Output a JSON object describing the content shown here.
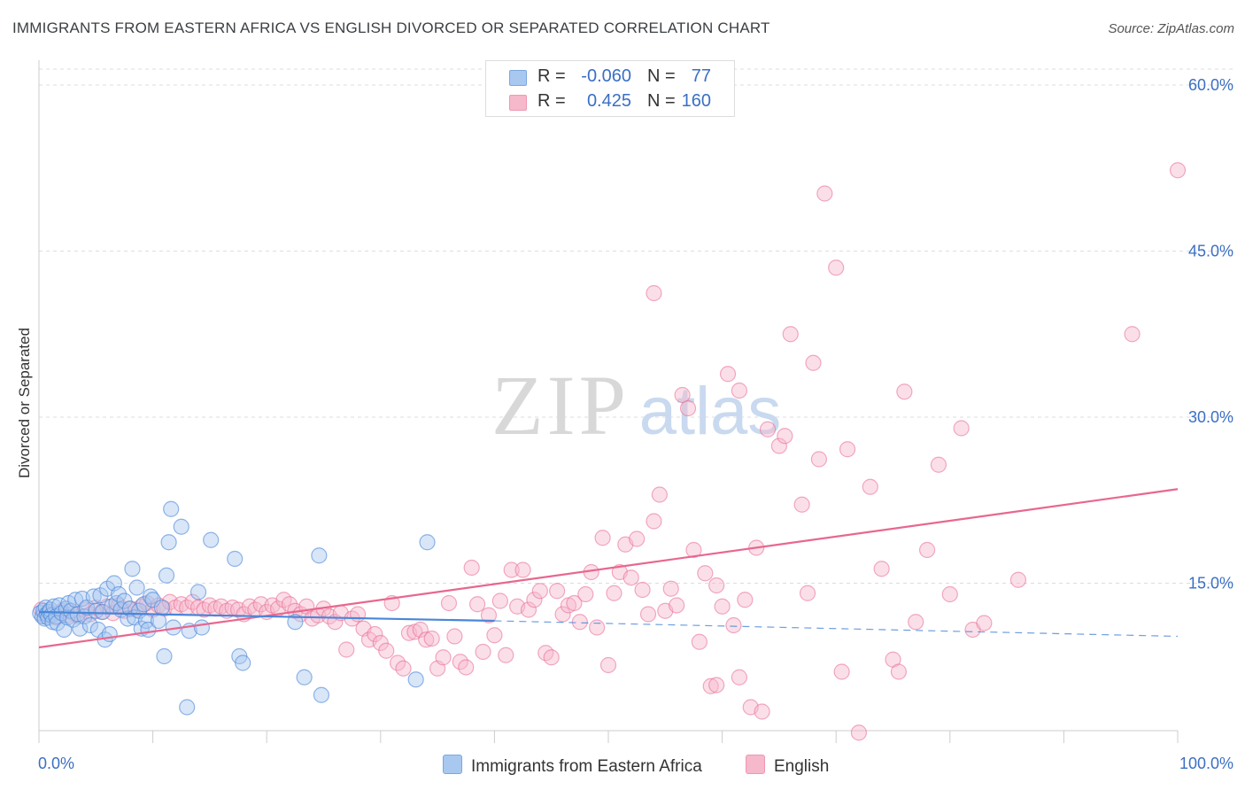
{
  "title": "IMMIGRANTS FROM EASTERN AFRICA VS ENGLISH DIVORCED OR SEPARATED CORRELATION CHART",
  "source": "Source: ZipAtlas.com",
  "watermark": {
    "zip": "ZIP",
    "atlas": "atlas"
  },
  "legend": {
    "rows": [
      {
        "r_label": "R =",
        "r_value": "-0.060",
        "n_label": "N =",
        "n_value": "77",
        "color": "#a8c8f0"
      },
      {
        "r_label": "R =",
        "r_value": "0.425",
        "n_label": "N =",
        "n_value": "160",
        "color": "#f6b8cb"
      }
    ]
  },
  "bottom_legend": {
    "series1": "Immigrants from Eastern Africa",
    "series2": "English"
  },
  "colors": {
    "blue": "#4a86d8",
    "blue_fill": "#a8c8f0",
    "pink": "#e8678f",
    "pink_fill": "#f6b8cb",
    "axis_text": "#3a6fc4",
    "grid": "#dddddd"
  },
  "chart_data": {
    "type": "scatter",
    "title": "IMMIGRANTS FROM EASTERN AFRICA VS ENGLISH DIVORCED OR SEPARATED CORRELATION CHART",
    "xlabel": "",
    "ylabel": "Divorced or Separated",
    "xlim": [
      0,
      100
    ],
    "ylim": [
      0,
      60
    ],
    "x_tick_labels": [
      "0.0%",
      "100.0%"
    ],
    "y_ticks": [
      15,
      30,
      45,
      60
    ],
    "y_tick_labels": [
      "15.0%",
      "30.0%",
      "45.0%",
      "60.0%"
    ],
    "grid": true,
    "legend_position": "top-center",
    "series": [
      {
        "name": "Immigrants from Eastern Africa",
        "r": -0.06,
        "n": 77,
        "trend": {
          "x0": 0,
          "y0": 12.4,
          "x1": 40,
          "y1": 11.6,
          "dash_to_x": 100,
          "dash_to_y": 10.2
        },
        "points": [
          [
            0.1,
            12.3
          ],
          [
            0.3,
            12.0
          ],
          [
            0.4,
            12.5
          ],
          [
            0.5,
            11.8
          ],
          [
            0.6,
            12.8
          ],
          [
            0.7,
            12.2
          ],
          [
            0.8,
            11.9
          ],
          [
            0.9,
            12.4
          ],
          [
            1.0,
            12.6
          ],
          [
            1.1,
            12.1
          ],
          [
            1.2,
            11.5
          ],
          [
            1.3,
            12.9
          ],
          [
            1.5,
            12.0
          ],
          [
            1.6,
            11.4
          ],
          [
            1.8,
            13.0
          ],
          [
            2.0,
            12.3
          ],
          [
            2.2,
            10.8
          ],
          [
            2.4,
            12.7
          ],
          [
            2.5,
            11.9
          ],
          [
            2.6,
            13.2
          ],
          [
            2.8,
            12.5
          ],
          [
            3.0,
            11.7
          ],
          [
            3.2,
            13.5
          ],
          [
            3.4,
            12.2
          ],
          [
            3.6,
            10.9
          ],
          [
            3.8,
            13.6
          ],
          [
            4.0,
            12.0
          ],
          [
            4.2,
            12.8
          ],
          [
            4.5,
            11.2
          ],
          [
            4.8,
            13.8
          ],
          [
            5.0,
            12.5
          ],
          [
            5.2,
            10.8
          ],
          [
            5.4,
            13.9
          ],
          [
            5.6,
            12.4
          ],
          [
            5.8,
            9.9
          ],
          [
            6.0,
            14.5
          ],
          [
            6.2,
            10.4
          ],
          [
            6.4,
            12.9
          ],
          [
            6.6,
            15.0
          ],
          [
            6.8,
            13.2
          ],
          [
            7.0,
            14.0
          ],
          [
            7.2,
            12.6
          ],
          [
            7.5,
            13.4
          ],
          [
            7.8,
            11.8
          ],
          [
            8.0,
            12.7
          ],
          [
            8.2,
            16.3
          ],
          [
            8.4,
            11.9
          ],
          [
            8.6,
            14.6
          ],
          [
            8.8,
            12.5
          ],
          [
            9.0,
            10.9
          ],
          [
            9.2,
            13.1
          ],
          [
            9.4,
            11.6
          ],
          [
            9.6,
            10.8
          ],
          [
            9.8,
            13.8
          ],
          [
            10.0,
            13.5
          ],
          [
            10.5,
            11.6
          ],
          [
            10.8,
            12.8
          ],
          [
            11.0,
            8.4
          ],
          [
            11.2,
            15.7
          ],
          [
            11.4,
            18.7
          ],
          [
            11.6,
            21.7
          ],
          [
            11.8,
            11.0
          ],
          [
            12.5,
            20.1
          ],
          [
            13.0,
            3.8
          ],
          [
            13.2,
            10.7
          ],
          [
            14.0,
            14.2
          ],
          [
            14.3,
            11.0
          ],
          [
            15.1,
            18.9
          ],
          [
            17.2,
            17.2
          ],
          [
            17.6,
            8.4
          ],
          [
            17.9,
            7.8
          ],
          [
            22.5,
            11.5
          ],
          [
            23.3,
            6.5
          ],
          [
            24.6,
            17.5
          ],
          [
            24.8,
            4.9
          ],
          [
            33.1,
            6.3
          ],
          [
            34.1,
            18.7
          ]
        ]
      },
      {
        "name": "English",
        "r": 0.425,
        "n": 160,
        "trend": {
          "x0": 0,
          "y0": 9.2,
          "x1": 100,
          "y1": 23.5
        },
        "points": [
          [
            0.2,
            12.6
          ],
          [
            0.5,
            12.0
          ],
          [
            0.8,
            12.4
          ],
          [
            1.0,
            12.2
          ],
          [
            1.5,
            11.9
          ],
          [
            2.0,
            12.5
          ],
          [
            2.5,
            12.1
          ],
          [
            3.0,
            12.3
          ],
          [
            3.5,
            12.0
          ],
          [
            4.0,
            12.6
          ],
          [
            4.5,
            12.2
          ],
          [
            5.0,
            12.8
          ],
          [
            5.5,
            12.4
          ],
          [
            6.0,
            12.9
          ],
          [
            6.5,
            12.3
          ],
          [
            7.0,
            13.0
          ],
          [
            7.5,
            12.5
          ],
          [
            8.0,
            12.7
          ],
          [
            8.5,
            12.6
          ],
          [
            9.0,
            12.9
          ],
          [
            9.5,
            13.2
          ],
          [
            10.0,
            12.6
          ],
          [
            10.5,
            13.0
          ],
          [
            11.0,
            12.7
          ],
          [
            11.5,
            13.3
          ],
          [
            12.0,
            12.8
          ],
          [
            12.5,
            13.1
          ],
          [
            13.0,
            12.8
          ],
          [
            13.5,
            13.3
          ],
          [
            14.0,
            12.8
          ],
          [
            14.5,
            12.6
          ],
          [
            15.0,
            13.0
          ],
          [
            15.5,
            12.7
          ],
          [
            16.0,
            12.9
          ],
          [
            16.5,
            12.5
          ],
          [
            17.0,
            12.8
          ],
          [
            17.5,
            12.6
          ],
          [
            18.0,
            12.2
          ],
          [
            18.5,
            12.9
          ],
          [
            19.0,
            12.6
          ],
          [
            19.5,
            13.1
          ],
          [
            20.0,
            12.4
          ],
          [
            20.5,
            13.0
          ],
          [
            21.0,
            12.7
          ],
          [
            21.5,
            13.5
          ],
          [
            22.0,
            13.1
          ],
          [
            22.5,
            12.5
          ],
          [
            23.0,
            12.2
          ],
          [
            23.5,
            12.9
          ],
          [
            24.0,
            11.8
          ],
          [
            24.5,
            12.1
          ],
          [
            25.0,
            12.7
          ],
          [
            25.5,
            12.0
          ],
          [
            26.0,
            11.5
          ],
          [
            26.5,
            12.3
          ],
          [
            27.0,
            9.0
          ],
          [
            27.5,
            11.8
          ],
          [
            28.0,
            12.2
          ],
          [
            28.5,
            10.9
          ],
          [
            29.0,
            9.9
          ],
          [
            29.5,
            10.4
          ],
          [
            30.0,
            9.6
          ],
          [
            30.5,
            8.9
          ],
          [
            31.0,
            13.2
          ],
          [
            31.5,
            7.8
          ],
          [
            32.0,
            7.3
          ],
          [
            32.5,
            10.5
          ],
          [
            33.0,
            10.6
          ],
          [
            33.5,
            10.8
          ],
          [
            34.0,
            9.9
          ],
          [
            34.5,
            10.0
          ],
          [
            35.0,
            7.3
          ],
          [
            35.5,
            8.3
          ],
          [
            36.0,
            13.2
          ],
          [
            36.5,
            10.2
          ],
          [
            37.0,
            7.9
          ],
          [
            37.5,
            7.4
          ],
          [
            38.0,
            16.4
          ],
          [
            38.5,
            13.1
          ],
          [
            39.0,
            8.8
          ],
          [
            39.5,
            12.1
          ],
          [
            40.0,
            10.3
          ],
          [
            40.5,
            13.4
          ],
          [
            41.0,
            8.5
          ],
          [
            41.5,
            16.2
          ],
          [
            42.0,
            12.9
          ],
          [
            42.5,
            16.2
          ],
          [
            43.0,
            12.6
          ],
          [
            43.5,
            13.5
          ],
          [
            44.0,
            14.3
          ],
          [
            44.5,
            8.7
          ],
          [
            45.0,
            8.3
          ],
          [
            45.5,
            14.3
          ],
          [
            46.0,
            12.2
          ],
          [
            46.5,
            13.0
          ],
          [
            47.0,
            13.2
          ],
          [
            47.5,
            11.5
          ],
          [
            48.0,
            14.0
          ],
          [
            48.5,
            16.0
          ],
          [
            49.0,
            11.0
          ],
          [
            49.5,
            19.1
          ],
          [
            50.0,
            7.6
          ],
          [
            50.5,
            14.1
          ],
          [
            51.0,
            16.0
          ],
          [
            51.5,
            18.5
          ],
          [
            52.0,
            15.5
          ],
          [
            52.5,
            19.0
          ],
          [
            53.0,
            14.4
          ],
          [
            53.5,
            12.2
          ],
          [
            54.0,
            20.6
          ],
          [
            54.5,
            23.0
          ],
          [
            55.0,
            12.5
          ],
          [
            55.5,
            14.5
          ],
          [
            56.0,
            13.0
          ],
          [
            56.5,
            32.0
          ],
          [
            57.0,
            30.8
          ],
          [
            57.5,
            18.0
          ],
          [
            58.0,
            9.7
          ],
          [
            58.5,
            15.9
          ],
          [
            59.0,
            5.7
          ],
          [
            59.5,
            14.8
          ],
          [
            60.0,
            12.9
          ],
          [
            60.5,
            33.9
          ],
          [
            61.0,
            11.2
          ],
          [
            61.5,
            6.5
          ],
          [
            62.0,
            13.5
          ],
          [
            62.5,
            3.8
          ],
          [
            63.0,
            18.2
          ],
          [
            63.5,
            3.4
          ],
          [
            64.0,
            28.9
          ],
          [
            65.0,
            27.4
          ],
          [
            65.5,
            28.3
          ],
          [
            66.0,
            37.5
          ],
          [
            67.0,
            22.1
          ],
          [
            67.5,
            14.1
          ],
          [
            68.0,
            34.9
          ],
          [
            68.5,
            26.2
          ],
          [
            69.0,
            50.2
          ],
          [
            70.0,
            43.5
          ],
          [
            70.5,
            7.0
          ],
          [
            71.0,
            27.1
          ],
          [
            72.0,
            1.5
          ],
          [
            73.0,
            23.7
          ],
          [
            74.0,
            16.3
          ],
          [
            75.0,
            8.1
          ],
          [
            75.5,
            7.0
          ],
          [
            76.0,
            32.3
          ],
          [
            77.0,
            11.5
          ],
          [
            78.0,
            18.0
          ],
          [
            79.0,
            25.7
          ],
          [
            80.0,
            14.0
          ],
          [
            81.0,
            29.0
          ],
          [
            82.0,
            10.8
          ],
          [
            83.0,
            11.4
          ],
          [
            86.0,
            15.3
          ],
          [
            96.0,
            37.5
          ],
          [
            100.0,
            52.3
          ],
          [
            61.5,
            32.4
          ],
          [
            54.0,
            41.2
          ],
          [
            59.5,
            5.8
          ]
        ]
      }
    ]
  }
}
